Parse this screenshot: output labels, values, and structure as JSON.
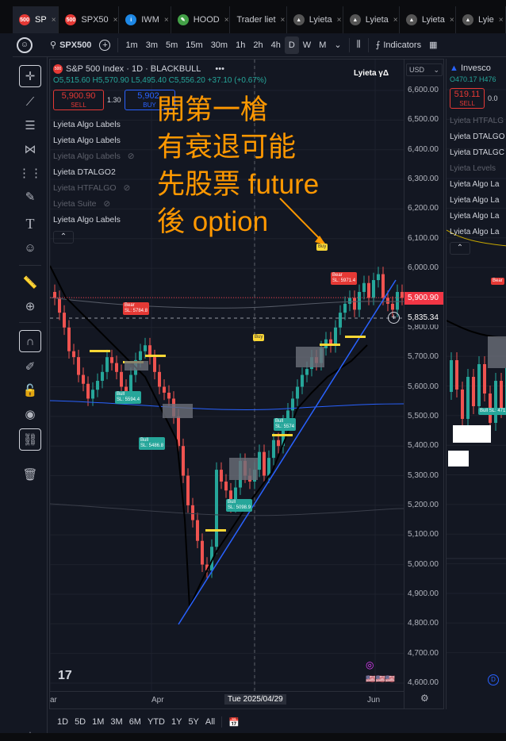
{
  "browser": {
    "tabs": [
      {
        "label": "SP",
        "icon": "500",
        "color": "#e53935",
        "active": true
      },
      {
        "label": "SPX50",
        "icon": "500",
        "color": "#e53935"
      },
      {
        "label": "IWM",
        "icon": "i",
        "color": "#1e88e5"
      },
      {
        "label": "HOOD",
        "icon": "✎",
        "color": "#43a047"
      },
      {
        "label": "Trader liet",
        "icon": "",
        "color": ""
      },
      {
        "label": "Lyieta",
        "icon": "▲",
        "color": "#555"
      },
      {
        "label": "Lyieta",
        "icon": "▲",
        "color": "#555"
      },
      {
        "label": "Lyieta",
        "icon": "▲",
        "color": "#555"
      },
      {
        "label": "Lyie",
        "icon": "▲",
        "color": "#555"
      }
    ]
  },
  "toolbar": {
    "symbol": "SPX500",
    "intervals": [
      "1m",
      "3m",
      "5m",
      "15m",
      "30m",
      "1h",
      "2h",
      "4h",
      "D",
      "W",
      "M"
    ],
    "selected_interval": "D",
    "indicators_label": "Indicators"
  },
  "chart": {
    "title": "S&P 500 Index · 1D · BLACKBULL",
    "ohlc": "O5,515.60 H5,570.90 L5,495.40 C5,556.20 +37.10 (+0.67%)",
    "sell_price": "5,900.90",
    "sell_label": "SELL",
    "spread": "1.30",
    "buy_price": "5,902.",
    "buy_label": "BUY",
    "brand": "Lyieta γΔ",
    "currency": "USD",
    "indicators": [
      {
        "label": "Lyieta Algo Labels",
        "dim": false
      },
      {
        "label": "Lyieta Algo Labels",
        "dim": false
      },
      {
        "label": "Lyieta Algo Labels",
        "dim": true
      },
      {
        "label": "Lyieta DTALGO2",
        "dim": false
      },
      {
        "label": "Lyieta HTFALGO",
        "dim": true
      },
      {
        "label": "Lyieta Suite",
        "dim": true
      },
      {
        "label": "Lyieta Algo Labels",
        "dim": false
      }
    ],
    "price_ticks": [
      "6,600.00",
      "6,500.00",
      "6,400.00",
      "6,300.00",
      "6,200.00",
      "6,100.00",
      "6,000.00",
      "5,900.00",
      "5,800.00",
      "5,700.00",
      "5,600.00",
      "5,500.00",
      "5,400.00",
      "5,300.00",
      "5,200.00",
      "5,100.00",
      "5,000.00",
      "4,900.00",
      "4,800.00",
      "4,700.00",
      "4,600.00"
    ],
    "last_price": "5,900.90",
    "crosshair_price": "5,835.34",
    "x_labels": [
      "ar",
      "Apr",
      "Tue 2025/04/29",
      "Jun"
    ],
    "overlay_lines": [
      "開第一槍",
      "有衰退可能",
      "先股票 future",
      "後 option"
    ],
    "trade_labels": [
      {
        "text": "Bear\nSL: 5784.8",
        "kind": "red"
      },
      {
        "text": "Bull\nSL: 5594.4",
        "kind": "teal"
      },
      {
        "text": "Bull\nSL: 5486.8",
        "kind": "teal"
      },
      {
        "text": "Bull\nSL: 5098.9",
        "kind": "teal"
      },
      {
        "text": "Bull\nSL: 5574",
        "kind": "teal"
      },
      {
        "text": "Bear\nSL: 5971.4",
        "kind": "red"
      },
      {
        "text": "Buy",
        "kind": "yellow"
      },
      {
        "text": "Buy",
        "kind": "yellow"
      }
    ]
  },
  "chart2": {
    "title": "Invesco",
    "ohlc": "O470.17 H476",
    "sell_price": "519.11",
    "sell_label": "SELL",
    "spread": "0.0",
    "indicators": [
      "Lyieta HTFALG",
      "Lyieta DTALGO",
      "Lyieta DTALGC",
      "Lyieta Levels",
      "Lyieta Algo La",
      "Lyieta Algo La",
      "Lyieta Algo La",
      "Lyieta Algo La"
    ],
    "trade_label": "Bull\nSL: 471.71",
    "bear_label": "Bear"
  },
  "bottombar": {
    "ranges": [
      "1D",
      "5D",
      "1M",
      "3M",
      "6M",
      "YTD",
      "1Y",
      "5Y",
      "All"
    ]
  }
}
